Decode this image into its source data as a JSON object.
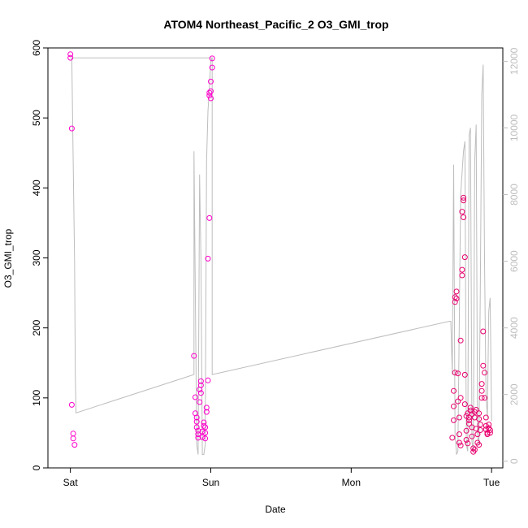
{
  "chart_data": {
    "type": "scatter",
    "title": "ATOM4 Northeast_Pacific_2 O3_GMI_trop",
    "xlabel": "Date",
    "ylabel": "O3_GMI_trop",
    "x_ticks": [
      {
        "label": "Sat",
        "day": 0
      },
      {
        "label": "Sun",
        "day": 1
      },
      {
        "label": "Mon",
        "day": 2
      },
      {
        "label": "Tue",
        "day": 3
      }
    ],
    "xlim_days": [
      -0.16,
      3.08
    ],
    "ylim": [
      0,
      600
    ],
    "y_ticks": [
      0,
      100,
      200,
      300,
      400,
      500,
      600
    ],
    "right_axis": {
      "ylim": [
        -200,
        12400
      ],
      "ticks": [
        0,
        2000,
        4000,
        6000,
        8000,
        10000,
        12000
      ],
      "color": "#bdbdbd"
    },
    "grid": false,
    "series": [
      {
        "kind": "points",
        "color": "#ff00cc",
        "points": [
          [
            0.0,
            591
          ],
          [
            0.0,
            586
          ],
          [
            0.01,
            485
          ],
          [
            0.01,
            90
          ],
          [
            0.02,
            49
          ],
          [
            0.02,
            42
          ],
          [
            0.03,
            33
          ],
          [
            0.88,
            160
          ],
          [
            0.89,
            101
          ],
          [
            0.89,
            78
          ],
          [
            0.9,
            72
          ],
          [
            0.9,
            66
          ],
          [
            0.9,
            58
          ],
          [
            0.91,
            53
          ],
          [
            0.91,
            48
          ],
          [
            0.91,
            43
          ],
          [
            0.92,
            94
          ],
          [
            0.92,
            112
          ],
          [
            0.93,
            118
          ],
          [
            0.93,
            124
          ],
          [
            0.93,
            107
          ],
          [
            0.94,
            52
          ],
          [
            0.94,
            44
          ],
          [
            0.95,
            60
          ],
          [
            0.95,
            65
          ],
          [
            0.96,
            58
          ],
          [
            0.96,
            50
          ],
          [
            0.96,
            42
          ],
          [
            0.97,
            86
          ],
          [
            0.97,
            80
          ],
          [
            0.98,
            125
          ],
          [
            0.98,
            299
          ],
          [
            0.99,
            357
          ],
          [
            0.99,
            532
          ],
          [
            0.99,
            536
          ],
          [
            1.0,
            528
          ],
          [
            1.0,
            538
          ],
          [
            1.0,
            552
          ],
          [
            1.01,
            572
          ],
          [
            1.01,
            585
          ]
        ]
      },
      {
        "kind": "points",
        "color": "#e8006e",
        "points": [
          [
            2.72,
            43
          ],
          [
            2.73,
            68
          ],
          [
            2.73,
            88
          ],
          [
            2.73,
            110
          ],
          [
            2.74,
            136
          ],
          [
            2.74,
            237
          ],
          [
            2.74,
            244
          ],
          [
            2.75,
            252
          ],
          [
            2.75,
            242
          ],
          [
            2.76,
            135
          ],
          [
            2.76,
            95
          ],
          [
            2.77,
            72
          ],
          [
            2.77,
            48
          ],
          [
            2.77,
            36
          ],
          [
            2.78,
            32
          ],
          [
            2.78,
            100
          ],
          [
            2.78,
            182
          ],
          [
            2.79,
            275
          ],
          [
            2.79,
            283
          ],
          [
            2.79,
            366
          ],
          [
            2.8,
            382
          ],
          [
            2.8,
            386
          ],
          [
            2.8,
            358
          ],
          [
            2.81,
            301
          ],
          [
            2.81,
            133
          ],
          [
            2.81,
            91
          ],
          [
            2.82,
            74
          ],
          [
            2.82,
            53
          ],
          [
            2.82,
            40
          ],
          [
            2.83,
            35
          ],
          [
            2.83,
            78
          ],
          [
            2.84,
            63
          ],
          [
            2.84,
            68
          ],
          [
            2.84,
            72
          ],
          [
            2.85,
            82
          ],
          [
            2.85,
            86
          ],
          [
            2.86,
            77
          ],
          [
            2.86,
            58
          ],
          [
            2.86,
            45
          ],
          [
            2.87,
            28
          ],
          [
            2.87,
            23
          ],
          [
            2.88,
            26
          ],
          [
            2.88,
            72
          ],
          [
            2.88,
            80
          ],
          [
            2.89,
            83
          ],
          [
            2.89,
            56
          ],
          [
            2.9,
            48
          ],
          [
            2.9,
            36
          ],
          [
            2.91,
            33
          ],
          [
            2.91,
            78
          ],
          [
            2.91,
            70
          ],
          [
            2.92,
            62
          ],
          [
            2.92,
            54
          ],
          [
            2.93,
            100
          ],
          [
            2.93,
            110
          ],
          [
            2.93,
            120
          ],
          [
            2.94,
            146
          ],
          [
            2.94,
            195
          ],
          [
            2.95,
            136
          ],
          [
            2.95,
            100
          ],
          [
            2.96,
            72
          ],
          [
            2.96,
            60
          ],
          [
            2.96,
            55
          ],
          [
            2.97,
            50
          ],
          [
            2.97,
            48
          ],
          [
            2.98,
            57
          ],
          [
            2.98,
            62
          ],
          [
            2.99,
            54
          ],
          [
            2.99,
            50
          ]
        ]
      },
      {
        "kind": "line",
        "axis": "right",
        "color": "#bdbdbd",
        "points": [
          [
            0.0,
            12100
          ],
          [
            0.01,
            12100
          ],
          [
            0.02,
            9000
          ],
          [
            0.03,
            6000
          ],
          [
            0.035,
            2600
          ],
          [
            0.04,
            1450
          ],
          [
            0.88,
            2600
          ],
          [
            0.88,
            9300
          ],
          [
            0.9,
            500
          ],
          [
            0.91,
            200
          ],
          [
            0.92,
            8600
          ],
          [
            0.93,
            6000
          ],
          [
            0.94,
            200
          ],
          [
            0.95,
            200
          ],
          [
            0.96,
            500
          ],
          [
            0.97,
            9000
          ],
          [
            0.98,
            10500
          ],
          [
            0.99,
            11200
          ],
          [
            1.0,
            12000
          ],
          [
            1.01,
            12100
          ],
          [
            0.01,
            12100
          ],
          [
            1.01,
            12100
          ],
          [
            1.01,
            2600
          ],
          [
            2.7,
            4200
          ],
          [
            2.71,
            4200
          ],
          [
            2.72,
            2600
          ],
          [
            2.73,
            8900
          ],
          [
            2.74,
            800
          ],
          [
            2.75,
            200
          ],
          [
            2.76,
            300
          ],
          [
            2.78,
            8000
          ],
          [
            2.8,
            9300
          ],
          [
            2.81,
            9600
          ],
          [
            2.82,
            500
          ],
          [
            2.83,
            300
          ],
          [
            2.84,
            9800
          ],
          [
            2.85,
            10000
          ],
          [
            2.86,
            600
          ],
          [
            2.87,
            300
          ],
          [
            2.88,
            9000
          ],
          [
            2.89,
            10100
          ],
          [
            2.9,
            800
          ],
          [
            2.91,
            500
          ],
          [
            2.92,
            5200
          ],
          [
            2.93,
            11000
          ],
          [
            2.94,
            11900
          ],
          [
            2.95,
            6000
          ],
          [
            2.96,
            2000
          ],
          [
            2.97,
            1300
          ],
          [
            2.98,
            4500
          ],
          [
            2.99,
            4900
          ],
          [
            3.0,
            1200
          ]
        ]
      }
    ]
  }
}
